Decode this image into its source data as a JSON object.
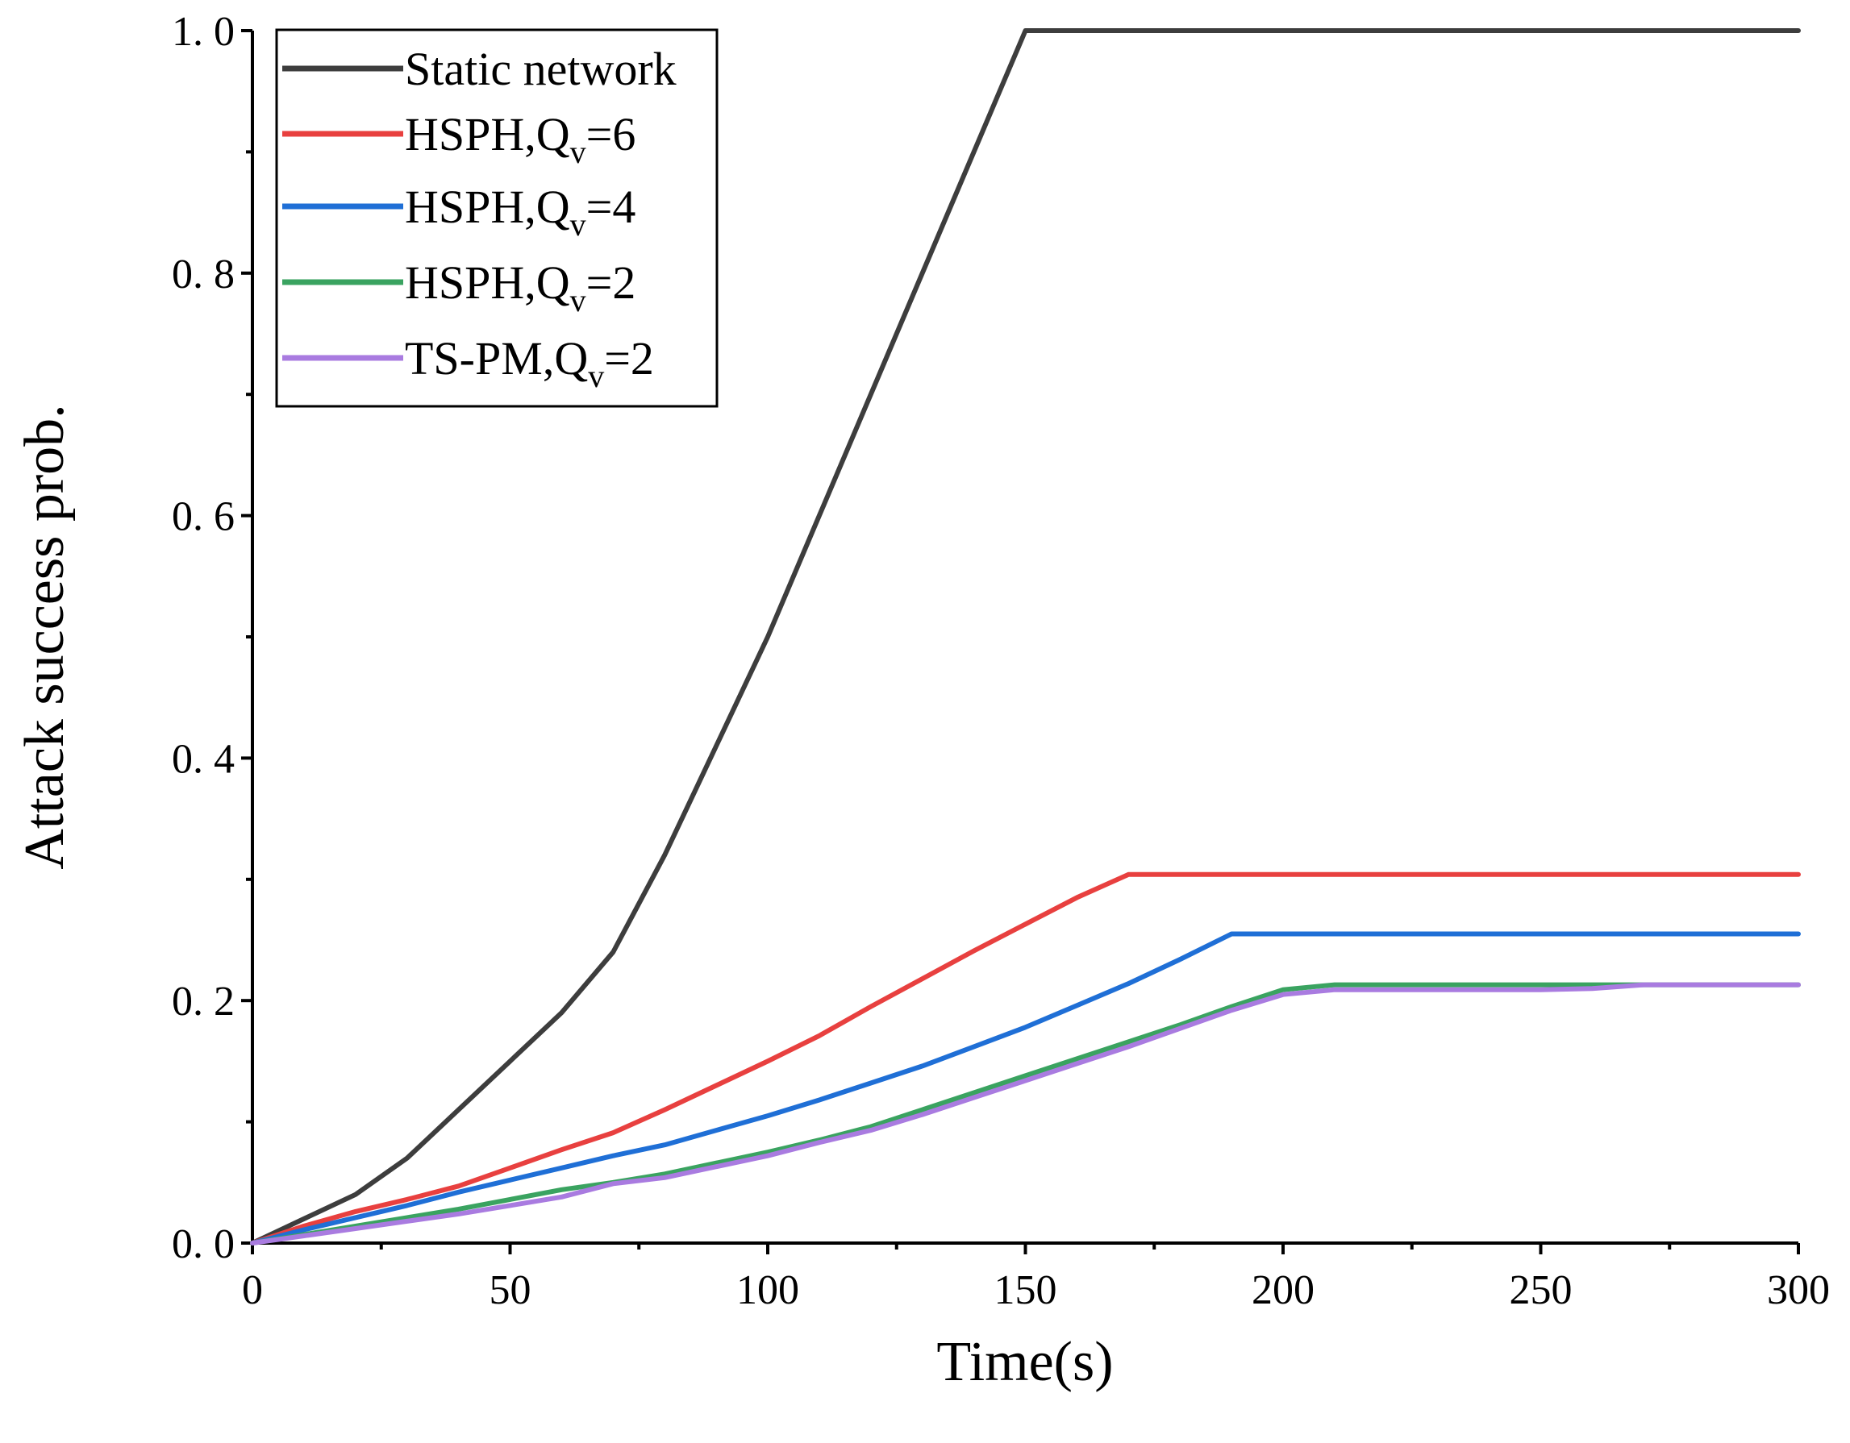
{
  "chart_data": {
    "type": "line",
    "title": "",
    "xlabel": "Time(s)",
    "ylabel": "Attack success prob.",
    "xlim": [
      0,
      300
    ],
    "ylim": [
      0,
      1.0
    ],
    "xticks": [
      0,
      50,
      100,
      150,
      200,
      250,
      300
    ],
    "xtick_labels": [
      "0",
      "50",
      "100",
      "150",
      "200",
      "250",
      "300"
    ],
    "yticks": [
      0.0,
      0.2,
      0.4,
      0.6,
      0.8,
      1.0
    ],
    "ytick_labels": [
      "0. 0",
      "0. 2",
      "0. 4",
      "0. 6",
      "0. 8",
      "1. 0"
    ],
    "legend_position": "top-left",
    "grid": false,
    "series": [
      {
        "name": "Static network",
        "label_main": "Static network",
        "label_sub": "",
        "label_tail": "",
        "color": "#3d3d3d",
        "x": [
          0,
          10,
          20,
          30,
          40,
          50,
          60,
          70,
          80,
          90,
          100,
          110,
          120,
          130,
          140,
          150,
          160,
          170,
          180,
          190,
          200,
          210,
          220,
          230,
          240,
          250,
          260,
          270,
          280,
          290,
          300
        ],
        "y": [
          0,
          0.02,
          0.04,
          0.07,
          0.11,
          0.15,
          0.19,
          0.24,
          0.32,
          0.41,
          0.5,
          0.6,
          0.7,
          0.8,
          0.9,
          1.0,
          1.0,
          1.0,
          1.0,
          1.0,
          1.0,
          1.0,
          1.0,
          1.0,
          1.0,
          1.0,
          1.0,
          1.0,
          1.0,
          1.0,
          1.0
        ]
      },
      {
        "name": "HSPH,Qv=6",
        "label_main": "HSPH,Q",
        "label_sub": "v",
        "label_tail": "=6",
        "color": "#e8403f",
        "x": [
          0,
          10,
          20,
          30,
          40,
          50,
          60,
          70,
          80,
          90,
          100,
          110,
          120,
          130,
          140,
          150,
          160,
          170,
          180,
          190,
          200,
          210,
          220,
          230,
          240,
          250,
          260,
          270,
          280,
          290,
          300
        ],
        "y": [
          0,
          0.014,
          0.026,
          0.036,
          0.047,
          0.062,
          0.077,
          0.091,
          0.11,
          0.13,
          0.15,
          0.171,
          0.195,
          0.218,
          0.241,
          0.263,
          0.285,
          0.304,
          0.304,
          0.304,
          0.304,
          0.304,
          0.304,
          0.304,
          0.304,
          0.304,
          0.304,
          0.304,
          0.304,
          0.304,
          0.304
        ]
      },
      {
        "name": "HSPH,Qv=4",
        "label_main": "HSPH,Q",
        "label_sub": "v",
        "label_tail": "=4",
        "color": "#1f6fd6",
        "x": [
          0,
          10,
          20,
          30,
          40,
          50,
          60,
          70,
          80,
          90,
          100,
          110,
          120,
          130,
          140,
          150,
          160,
          170,
          180,
          190,
          200,
          210,
          220,
          230,
          240,
          250,
          260,
          270,
          280,
          290,
          300
        ],
        "y": [
          0,
          0.011,
          0.021,
          0.031,
          0.042,
          0.052,
          0.062,
          0.072,
          0.081,
          0.093,
          0.105,
          0.118,
          0.132,
          0.146,
          0.162,
          0.178,
          0.196,
          0.214,
          0.234,
          0.255,
          0.255,
          0.255,
          0.255,
          0.255,
          0.255,
          0.255,
          0.255,
          0.255,
          0.255,
          0.255,
          0.255
        ]
      },
      {
        "name": "HSPH,Qv=2",
        "label_main": "HSPH,Q",
        "label_sub": "v",
        "label_tail": "=2",
        "color": "#3aa360",
        "x": [
          0,
          10,
          20,
          30,
          40,
          50,
          60,
          70,
          80,
          90,
          100,
          110,
          120,
          130,
          140,
          150,
          160,
          170,
          180,
          190,
          200,
          210,
          220,
          230,
          240,
          250,
          260,
          270,
          280,
          290,
          300
        ],
        "y": [
          0,
          0.007,
          0.014,
          0.021,
          0.028,
          0.036,
          0.044,
          0.05,
          0.057,
          0.066,
          0.075,
          0.085,
          0.096,
          0.11,
          0.124,
          0.138,
          0.152,
          0.166,
          0.18,
          0.195,
          0.209,
          0.213,
          0.213,
          0.213,
          0.213,
          0.213,
          0.213,
          0.213,
          0.213,
          0.213,
          0.213
        ]
      },
      {
        "name": "TS-PM,Qv=2",
        "label_main": "TS-PM,Q",
        "label_sub": "v",
        "label_tail": "=2",
        "color": "#a97be0",
        "x": [
          0,
          10,
          20,
          30,
          40,
          50,
          60,
          70,
          80,
          90,
          100,
          110,
          120,
          130,
          140,
          150,
          160,
          170,
          180,
          190,
          200,
          210,
          220,
          230,
          240,
          250,
          260,
          270,
          280,
          290,
          300
        ],
        "y": [
          0,
          0.006,
          0.012,
          0.018,
          0.024,
          0.031,
          0.038,
          0.049,
          0.054,
          0.063,
          0.072,
          0.083,
          0.093,
          0.106,
          0.12,
          0.134,
          0.148,
          0.162,
          0.177,
          0.192,
          0.205,
          0.209,
          0.209,
          0.209,
          0.209,
          0.209,
          0.21,
          0.213,
          0.213,
          0.213,
          0.213
        ]
      }
    ]
  }
}
